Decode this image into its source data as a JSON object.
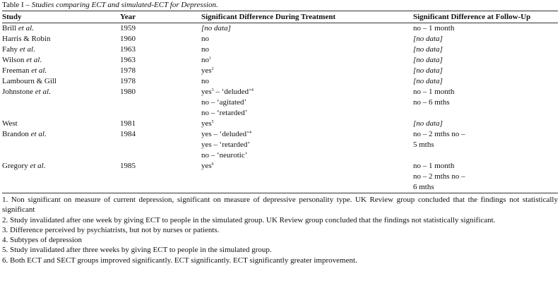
{
  "caption": {
    "label": "Table I – ",
    "title": "Studies comparing ECT and simulated-ECT for Depression."
  },
  "table": {
    "headers": [
      "Study",
      "Year",
      "Significant Difference During Treatment",
      "Significant Difference at Follow-Up"
    ],
    "rows": [
      {
        "study": [
          [
            "Brill ",
            {
              "i": "et al"
            },
            "."
          ]
        ],
        "year": "1959",
        "treatment": [
          [
            {
              "i": "[no data]"
            }
          ]
        ],
        "followup": [
          [
            "no – 1 month"
          ]
        ]
      },
      {
        "study": [
          [
            "Harris & Robin"
          ]
        ],
        "year": "1960",
        "treatment": [
          [
            "no"
          ]
        ],
        "followup": [
          [
            {
              "i": "[no data]"
            }
          ]
        ]
      },
      {
        "study": [
          [
            "Fahy ",
            {
              "i": "et al"
            },
            "."
          ]
        ],
        "year": "1963",
        "treatment": [
          [
            "no"
          ]
        ],
        "followup": [
          [
            {
              "i": "[no data]"
            }
          ]
        ]
      },
      {
        "study": [
          [
            "Wilson ",
            {
              "i": "et al"
            },
            "."
          ]
        ],
        "year": "1963",
        "treatment": [
          [
            "no",
            {
              "sup": "1"
            }
          ]
        ],
        "followup": [
          [
            {
              "i": "[no data]"
            }
          ]
        ]
      },
      {
        "study": [
          [
            "Freeman ",
            {
              "i": "et al."
            }
          ]
        ],
        "year": "1978",
        "treatment": [
          [
            "yes",
            {
              "sup": "2"
            }
          ]
        ],
        "followup": [
          [
            {
              "i": "[no data]"
            }
          ]
        ]
      },
      {
        "study": [
          [
            "Lambourn & Gill"
          ]
        ],
        "year": "1978",
        "treatment": [
          [
            "no"
          ]
        ],
        "followup": [
          [
            {
              "i": "[no data]"
            }
          ]
        ]
      },
      {
        "study": [
          [
            "Johnstone ",
            {
              "i": "et al"
            },
            "."
          ]
        ],
        "year": "1980",
        "treatment": [
          [
            "yes",
            {
              "sup": "3"
            },
            " – ‘deluded’",
            {
              "sup": "4"
            }
          ],
          [
            "no – ‘agitated’"
          ],
          [
            "no – ‘retarded’"
          ]
        ],
        "followup": [
          [
            "no – 1 month"
          ],
          [
            "no – 6 mths"
          ]
        ]
      },
      {
        "study": [
          [
            "West"
          ]
        ],
        "year": "1981",
        "treatment": [
          [
            "yes",
            {
              "sup": "5"
            }
          ]
        ],
        "followup": [
          [
            {
              "i": "[no data]"
            }
          ]
        ]
      },
      {
        "study": [
          [
            "Brandon ",
            {
              "i": "et al"
            },
            "."
          ]
        ],
        "year": "1984",
        "treatment": [
          [
            "yes – ‘deluded’",
            {
              "sup": "4"
            }
          ],
          [
            "yes – ‘retarded’"
          ],
          [
            "no – ‘neurotic’"
          ]
        ],
        "followup": [
          [
            "no – 2 mths no –"
          ],
          [
            "5 mths"
          ]
        ]
      },
      {
        "study": [
          [
            "Gregory ",
            {
              "i": "et al"
            },
            "."
          ]
        ],
        "year": "1985",
        "treatment": [
          [
            "yes",
            {
              "sup": "6"
            }
          ]
        ],
        "followup": [
          [
            "no – 1 month"
          ],
          [
            "no – 2 mths no –"
          ],
          [
            "6 mths"
          ]
        ]
      }
    ]
  },
  "notes": [
    "1. Non significant on measure of current depression, significant on measure of depressive personality type. UK Review group concluded that the findings not statistically significant",
    "2. Study invalidated after one week by giving ECT to people in the simulated group. UK Review group concluded that the findings not statistically significant.",
    "3. Difference perceived by psychiatrists, but not by nurses or patients.",
    "4. Subtypes of depression",
    "5. Study invalidated after three weeks by giving ECT to people in the simulated group.",
    "6. Both ECT and SECT groups improved significantly. ECT significantly. ECT significantly greater improvement."
  ]
}
